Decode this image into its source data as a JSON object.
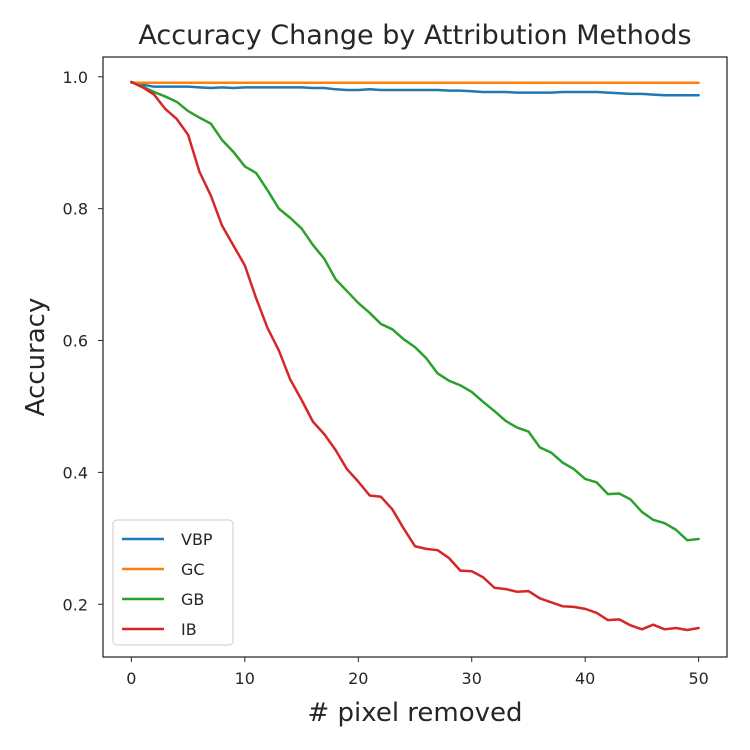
{
  "chart_data": {
    "type": "line",
    "title": "Accuracy Change by Attribution Methods",
    "xlabel": "# pixel removed",
    "ylabel": "Accuracy",
    "xlim": [
      -2.5,
      52.5
    ],
    "ylim": [
      0.12,
      1.03
    ],
    "xticks": [
      0,
      10,
      20,
      30,
      40,
      50
    ],
    "yticks": [
      0.2,
      0.4,
      0.6,
      0.8,
      1.0
    ],
    "xtick_labels": [
      "0",
      "10",
      "20",
      "30",
      "40",
      "50"
    ],
    "ytick_labels": [
      "0.2",
      "0.4",
      "0.6",
      "0.8",
      "1.0"
    ],
    "grid": false,
    "legend_position": "lower-left",
    "x": [
      0,
      1,
      2,
      3,
      4,
      5,
      6,
      7,
      8,
      9,
      10,
      11,
      12,
      13,
      14,
      15,
      16,
      17,
      18,
      19,
      20,
      21,
      22,
      23,
      24,
      25,
      26,
      27,
      28,
      29,
      30,
      31,
      32,
      33,
      34,
      35,
      36,
      37,
      38,
      39,
      40,
      41,
      42,
      43,
      44,
      45,
      46,
      47,
      48,
      49,
      50
    ],
    "series": [
      {
        "name": "VBP",
        "color": "#1f77b4",
        "values": [
          0.992,
          0.988,
          0.985,
          0.985,
          0.985,
          0.985,
          0.984,
          0.983,
          0.984,
          0.983,
          0.984,
          0.984,
          0.984,
          0.984,
          0.984,
          0.984,
          0.983,
          0.983,
          0.981,
          0.98,
          0.98,
          0.981,
          0.98,
          0.98,
          0.98,
          0.98,
          0.98,
          0.98,
          0.979,
          0.979,
          0.978,
          0.977,
          0.977,
          0.977,
          0.976,
          0.976,
          0.976,
          0.976,
          0.977,
          0.977,
          0.977,
          0.977,
          0.976,
          0.975,
          0.974,
          0.974,
          0.973,
          0.972,
          0.972,
          0.972,
          0.972
        ]
      },
      {
        "name": "GC",
        "color": "#ff7f0e",
        "values": [
          0.991,
          0.991,
          0.991,
          0.991,
          0.991,
          0.991,
          0.991,
          0.991,
          0.991,
          0.991,
          0.991,
          0.991,
          0.991,
          0.991,
          0.991,
          0.991,
          0.991,
          0.991,
          0.991,
          0.991,
          0.991,
          0.991,
          0.991,
          0.991,
          0.991,
          0.991,
          0.991,
          0.991,
          0.991,
          0.991,
          0.991,
          0.991,
          0.991,
          0.991,
          0.991,
          0.991,
          0.991,
          0.991,
          0.991,
          0.991,
          0.991,
          0.991,
          0.991,
          0.991,
          0.991,
          0.991,
          0.991,
          0.991,
          0.991,
          0.991,
          0.991
        ]
      },
      {
        "name": "GB",
        "color": "#2ca02c",
        "values": [
          0.992,
          0.985,
          0.977,
          0.97,
          0.962,
          0.948,
          0.938,
          0.929,
          0.904,
          0.886,
          0.864,
          0.854,
          0.828,
          0.8,
          0.786,
          0.77,
          0.745,
          0.724,
          0.693,
          0.675,
          0.657,
          0.642,
          0.625,
          0.617,
          0.602,
          0.59,
          0.573,
          0.55,
          0.539,
          0.532,
          0.522,
          0.507,
          0.493,
          0.478,
          0.468,
          0.462,
          0.438,
          0.43,
          0.415,
          0.405,
          0.39,
          0.385,
          0.367,
          0.368,
          0.359,
          0.34,
          0.328,
          0.323,
          0.313,
          0.297,
          0.299
        ]
      },
      {
        "name": "IB",
        "color": "#d62728",
        "values": [
          0.992,
          0.984,
          0.973,
          0.951,
          0.936,
          0.912,
          0.856,
          0.82,
          0.774,
          0.744,
          0.714,
          0.664,
          0.619,
          0.585,
          0.541,
          0.51,
          0.477,
          0.458,
          0.434,
          0.405,
          0.386,
          0.365,
          0.363,
          0.344,
          0.315,
          0.288,
          0.284,
          0.282,
          0.27,
          0.251,
          0.25,
          0.241,
          0.225,
          0.223,
          0.219,
          0.22,
          0.209,
          0.203,
          0.197,
          0.196,
          0.193,
          0.187,
          0.176,
          0.177,
          0.168,
          0.162,
          0.169,
          0.162,
          0.164,
          0.161,
          0.164
        ]
      }
    ]
  }
}
